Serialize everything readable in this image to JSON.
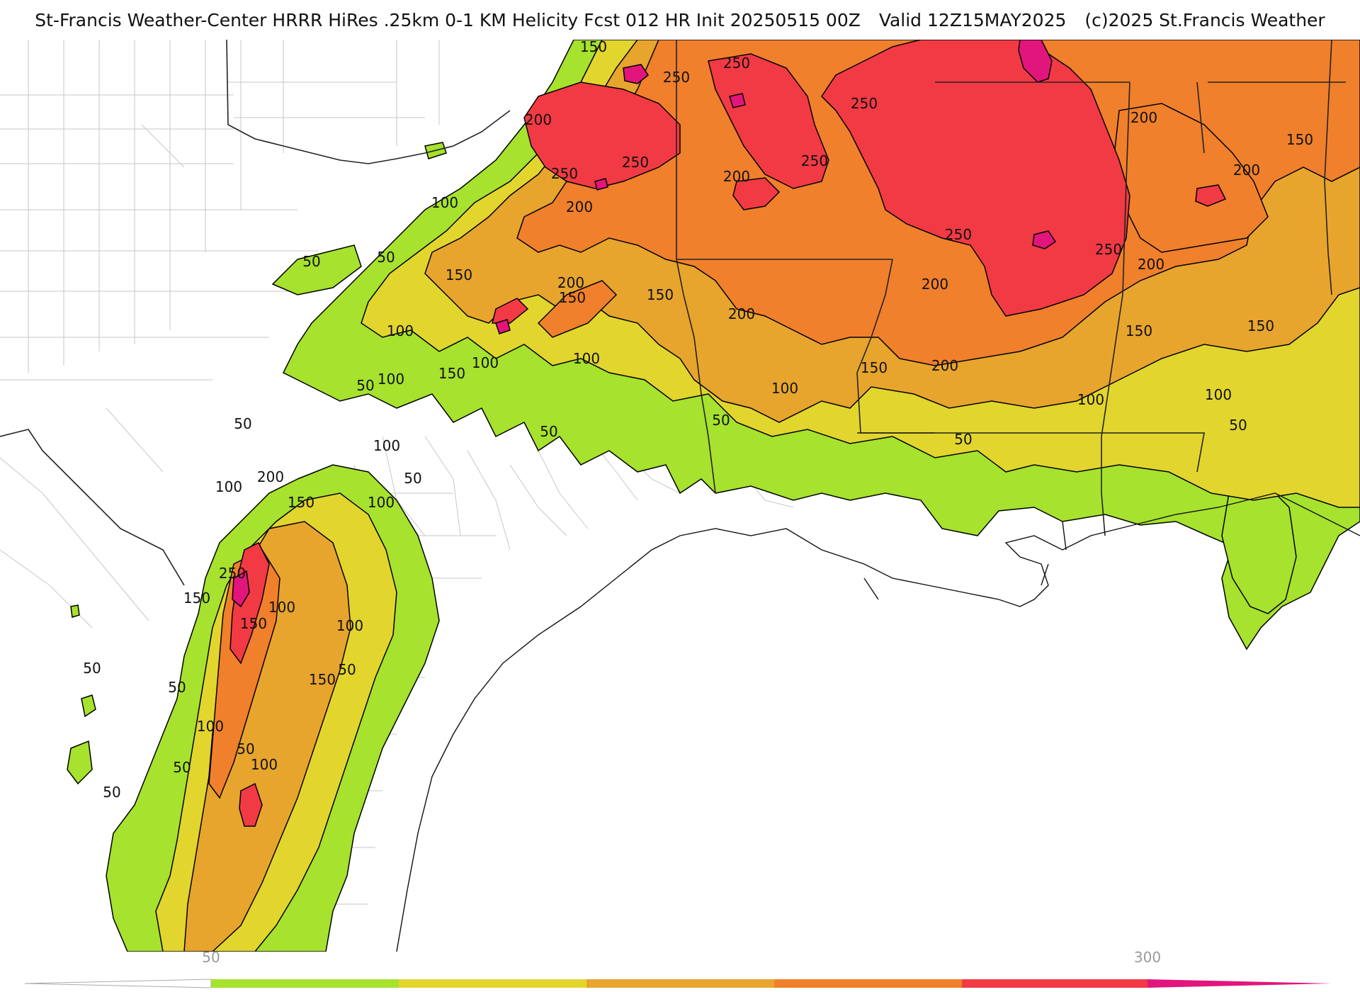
{
  "header": {
    "title_left": "St-Francis Weather-Center HRRR HiRes .25km 0-1 KM Helicity Fcst 012 HR Init 20250515 00Z",
    "valid": "Valid 12Z15MAY2025",
    "copyright": "(c)2025 St.Francis Weather"
  },
  "colors": {
    "lt50": "#ffffff",
    "c50_100": "#a6e22e",
    "c100_150": "#e2d52e",
    "c150_200": "#e7a52d",
    "c200_250": "#f0802b",
    "c250_300": "#f23a44",
    "c300": "#e2157d",
    "contour": "#000000",
    "border": "#222222",
    "county": "#c7c7c7"
  },
  "legend": {
    "tick_low": "50",
    "tick_high": "300"
  },
  "contour_labels": [
    {
      "text": "150",
      "pos": [
        838,
        17
      ]
    },
    {
      "text": "250",
      "pos": [
        1040,
        40
      ]
    },
    {
      "text": "250",
      "pos": [
        955,
        60
      ]
    },
    {
      "text": "250",
      "pos": [
        1220,
        97
      ]
    },
    {
      "text": "200",
      "pos": [
        760,
        120
      ]
    },
    {
      "text": "250",
      "pos": [
        897,
        180
      ]
    },
    {
      "text": "250",
      "pos": [
        1150,
        178
      ]
    },
    {
      "text": "200",
      "pos": [
        1040,
        200
      ]
    },
    {
      "text": "200",
      "pos": [
        818,
        243
      ]
    },
    {
      "text": "250",
      "pos": [
        797,
        196
      ]
    },
    {
      "text": "100",
      "pos": [
        628,
        237
      ]
    },
    {
      "text": "50",
      "pos": [
        545,
        314
      ]
    },
    {
      "text": "50",
      "pos": [
        440,
        320
      ]
    },
    {
      "text": "150",
      "pos": [
        648,
        339
      ]
    },
    {
      "text": "200",
      "pos": [
        806,
        350
      ]
    },
    {
      "text": "150",
      "pos": [
        808,
        371
      ]
    },
    {
      "text": "150",
      "pos": [
        932,
        367
      ]
    },
    {
      "text": "250",
      "pos": [
        1353,
        282
      ]
    },
    {
      "text": "250",
      "pos": [
        1565,
        303
      ]
    },
    {
      "text": "200",
      "pos": [
        1625,
        324
      ]
    },
    {
      "text": "200",
      "pos": [
        1320,
        352
      ]
    },
    {
      "text": "200",
      "pos": [
        1047,
        394
      ]
    },
    {
      "text": "100",
      "pos": [
        565,
        418
      ]
    },
    {
      "text": "100",
      "pos": [
        685,
        463
      ]
    },
    {
      "text": "150",
      "pos": [
        638,
        478
      ]
    },
    {
      "text": "100",
      "pos": [
        828,
        457
      ]
    },
    {
      "text": "100",
      "pos": [
        552,
        486
      ]
    },
    {
      "text": "50",
      "pos": [
        516,
        495
      ]
    },
    {
      "text": "150",
      "pos": [
        1234,
        470
      ]
    },
    {
      "text": "200",
      "pos": [
        1334,
        467
      ]
    },
    {
      "text": "100",
      "pos": [
        1108,
        499
      ]
    },
    {
      "text": "100",
      "pos": [
        1540,
        515
      ]
    },
    {
      "text": "100",
      "pos": [
        1720,
        508
      ]
    },
    {
      "text": "150",
      "pos": [
        1608,
        418
      ]
    },
    {
      "text": "150",
      "pos": [
        1780,
        411
      ]
    },
    {
      "text": "200",
      "pos": [
        1615,
        117
      ]
    },
    {
      "text": "200",
      "pos": [
        1760,
        191
      ]
    },
    {
      "text": "150",
      "pos": [
        1835,
        148
      ]
    },
    {
      "text": "50",
      "pos": [
        1018,
        544
      ]
    },
    {
      "text": "50",
      "pos": [
        775,
        560
      ]
    },
    {
      "text": "50",
      "pos": [
        1360,
        571
      ]
    },
    {
      "text": "50",
      "pos": [
        1748,
        551
      ]
    },
    {
      "text": "50",
      "pos": [
        343,
        549
      ]
    },
    {
      "text": "100",
      "pos": [
        546,
        580
      ]
    },
    {
      "text": "200",
      "pos": [
        382,
        624
      ]
    },
    {
      "text": "50",
      "pos": [
        583,
        626
      ]
    },
    {
      "text": "100",
      "pos": [
        323,
        638
      ]
    },
    {
      "text": "150",
      "pos": [
        425,
        660
      ]
    },
    {
      "text": "100",
      "pos": [
        538,
        660
      ]
    },
    {
      "text": "250",
      "pos": [
        328,
        760
      ]
    },
    {
      "text": "150",
      "pos": [
        278,
        795
      ]
    },
    {
      "text": "100",
      "pos": [
        398,
        808
      ]
    },
    {
      "text": "150",
      "pos": [
        358,
        831
      ]
    },
    {
      "text": "100",
      "pos": [
        494,
        834
      ]
    },
    {
      "text": "50",
      "pos": [
        130,
        894
      ]
    },
    {
      "text": "50",
      "pos": [
        490,
        896
      ]
    },
    {
      "text": "150",
      "pos": [
        455,
        910
      ]
    },
    {
      "text": "50",
      "pos": [
        250,
        921
      ]
    },
    {
      "text": "100",
      "pos": [
        297,
        976
      ]
    },
    {
      "text": "50",
      "pos": [
        347,
        1008
      ]
    },
    {
      "text": "100",
      "pos": [
        373,
        1030
      ]
    },
    {
      "text": "50",
      "pos": [
        257,
        1034
      ]
    },
    {
      "text": "50",
      "pos": [
        158,
        1069
      ]
    }
  ]
}
